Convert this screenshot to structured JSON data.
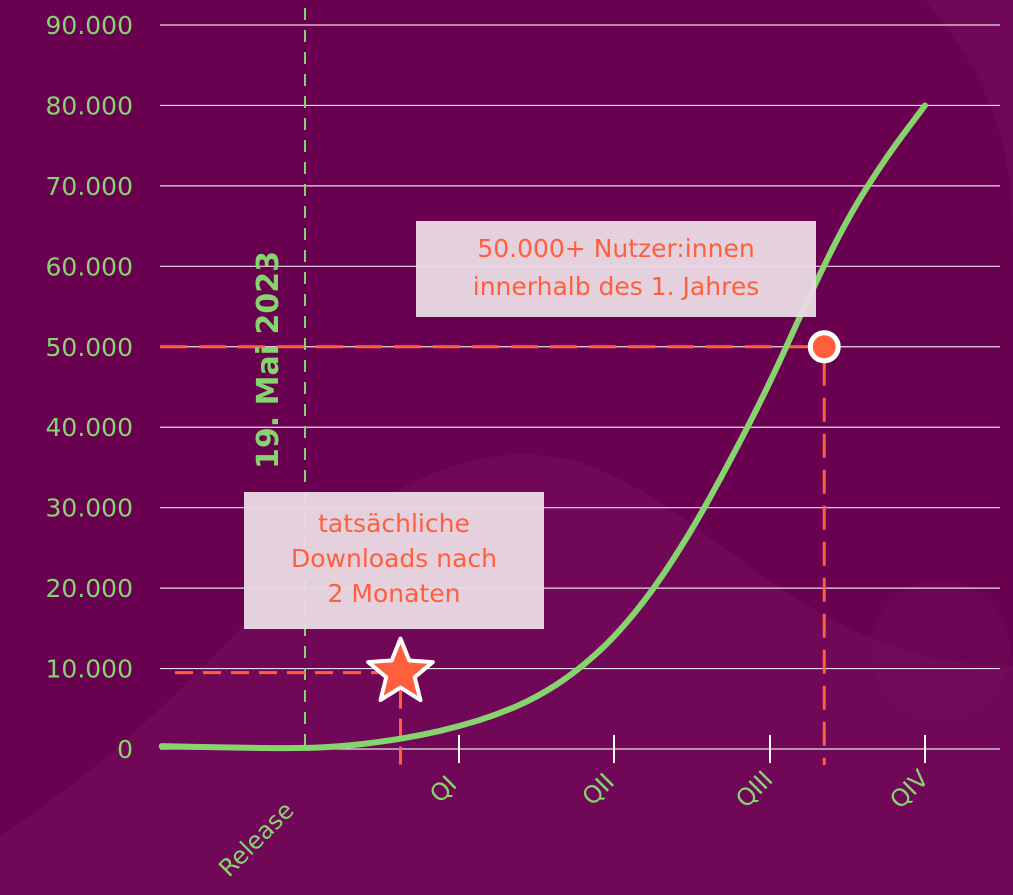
{
  "colors": {
    "background": "#6a0050",
    "background_shape": "#7a1060",
    "grid": "#eaeaf2",
    "curve": "#86d46e",
    "accent": "#ff5f3d",
    "annotation_box": "#ead9e4",
    "annotation_text": "#ff5f3d",
    "tick_text": "#86d46e"
  },
  "chart_data": {
    "type": "line",
    "y_ticks": [
      "0",
      "10.000",
      "20.000",
      "30.000",
      "40.000",
      "50.000",
      "60.000",
      "70.000",
      "80.000",
      "90.000"
    ],
    "ylim": [
      0,
      90000
    ],
    "x_ticks": [
      "Release",
      "QI",
      "QII",
      "QIII",
      "QIV"
    ],
    "x_tick_positions": [
      0,
      1,
      2,
      3,
      4
    ],
    "xlim": [
      -0.93,
      4.48
    ],
    "series": [
      {
        "name": "",
        "x": [
          -0.93,
          -0.5,
          0,
          0.25,
          0.5,
          0.75,
          1,
          1.25,
          1.5,
          1.75,
          2,
          2.25,
          2.5,
          2.75,
          3,
          3.25,
          3.5,
          3.75,
          4
        ],
        "y": [
          350,
          180,
          80,
          350,
          900,
          1700,
          2800,
          4300,
          6400,
          9500,
          13800,
          19700,
          27200,
          36000,
          45500,
          56200,
          66000,
          73600,
          80000
        ]
      }
    ],
    "markers": [
      {
        "type": "star",
        "x": 0.62,
        "y": 9500
      },
      {
        "type": "circle",
        "x": 3.35,
        "y": 50000
      }
    ],
    "release_date_label": "19. Mai 2023",
    "annotations": {
      "downloads_lines": [
        "tatsächliche",
        "Downloads nach",
        "2 Monaten"
      ],
      "users_lines": [
        "50.000+ Nutzer:innen",
        "innerhalb des 1. Jahres"
      ]
    },
    "grid": true
  }
}
